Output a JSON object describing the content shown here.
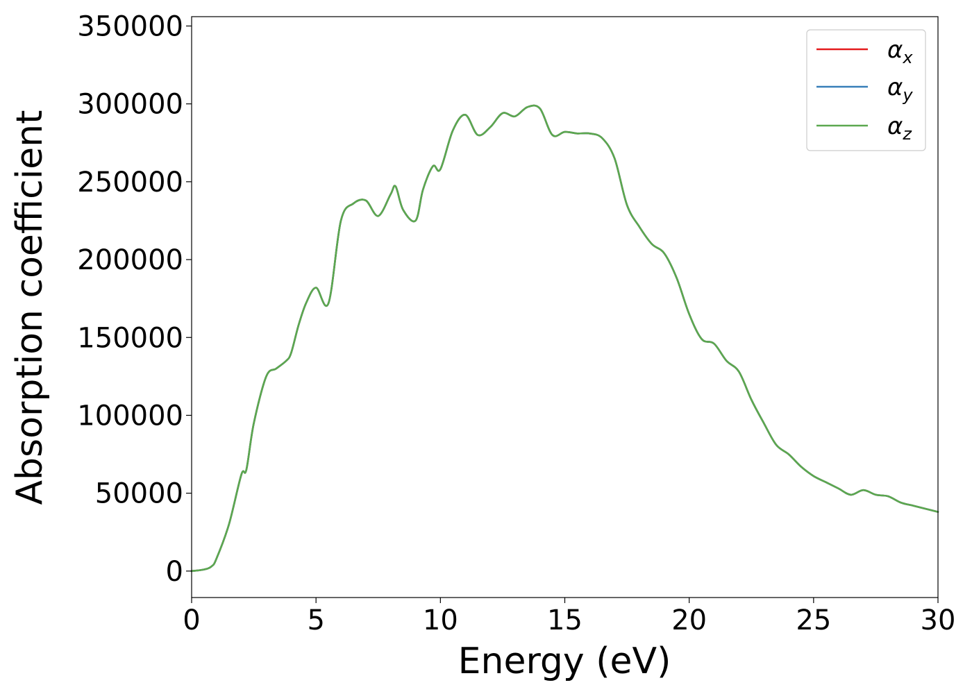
{
  "chart_data": {
    "type": "line",
    "xlabel": "Energy (eV)",
    "ylabel": "Absorption coefficient",
    "xlim": [
      0,
      30
    ],
    "ylim": [
      -17000,
      356000
    ],
    "xticks": [
      0,
      5,
      10,
      15,
      20,
      25,
      30
    ],
    "xtick_labels": [
      "0",
      "5",
      "10",
      "15",
      "20",
      "25",
      "30"
    ],
    "yticks": [
      0,
      50000,
      100000,
      150000,
      200000,
      250000,
      300000,
      350000
    ],
    "ytick_labels": [
      "0",
      "50000",
      "100000",
      "150000",
      "200000",
      "250000",
      "300000",
      "350000"
    ],
    "grid": false,
    "legend_position": "top-right",
    "x": [
      0,
      0.5,
      0.8,
      1.0,
      1.5,
      2.0,
      2.2,
      2.5,
      3.0,
      3.4,
      3.8,
      4.0,
      4.3,
      4.6,
      5.0,
      5.5,
      6.0,
      6.5,
      7.0,
      7.5,
      8.0,
      8.2,
      8.5,
      9.0,
      9.3,
      9.7,
      10.0,
      10.5,
      11.0,
      11.5,
      12.0,
      12.5,
      13.0,
      13.5,
      14.0,
      14.5,
      15.0,
      15.5,
      16.0,
      16.5,
      17.0,
      17.5,
      18.0,
      18.5,
      19.0,
      19.5,
      20.0,
      20.5,
      21.0,
      21.5,
      22.0,
      22.5,
      23.0,
      23.5,
      24.0,
      24.5,
      25.0,
      25.5,
      26.0,
      26.5,
      27.0,
      27.5,
      28.0,
      28.5,
      29.0,
      29.5,
      30.0
    ],
    "series": [
      {
        "name": "α_x",
        "color": "#e41a1c",
        "y": [
          0,
          1000,
          3000,
          8000,
          30000,
          62000,
          65000,
          95000,
          125000,
          130000,
          135000,
          140000,
          158000,
          172000,
          182000,
          172000,
          225000,
          236000,
          238000,
          228000,
          242000,
          247000,
          232000,
          225000,
          245000,
          260000,
          258000,
          283000,
          293000,
          280000,
          285000,
          294000,
          292000,
          298000,
          297000,
          280000,
          282000,
          281000,
          281000,
          278000,
          265000,
          235000,
          221000,
          210000,
          204000,
          188000,
          165000,
          149000,
          146000,
          135000,
          128000,
          110000,
          95000,
          81000,
          75000,
          67000,
          61000,
          57000,
          53000,
          49000,
          52000,
          49000,
          48000,
          44000,
          42000,
          40000,
          38000
        ]
      },
      {
        "name": "α_y",
        "color": "#377eb8",
        "y": [
          0,
          1000,
          3000,
          8000,
          30000,
          62000,
          65000,
          95000,
          125000,
          130000,
          135000,
          140000,
          158000,
          172000,
          182000,
          172000,
          225000,
          236000,
          238000,
          228000,
          242000,
          247000,
          232000,
          225000,
          245000,
          260000,
          258000,
          283000,
          293000,
          280000,
          285000,
          294000,
          292000,
          298000,
          297000,
          280000,
          282000,
          281000,
          281000,
          278000,
          265000,
          235000,
          221000,
          210000,
          204000,
          188000,
          165000,
          149000,
          146000,
          135000,
          128000,
          110000,
          95000,
          81000,
          75000,
          67000,
          61000,
          57000,
          53000,
          49000,
          52000,
          49000,
          48000,
          44000,
          42000,
          40000,
          38000
        ]
      },
      {
        "name": "α_z",
        "color": "#5ba84f",
        "y": [
          0,
          1000,
          3000,
          8000,
          30000,
          62000,
          65000,
          95000,
          125000,
          130000,
          135000,
          140000,
          158000,
          172000,
          182000,
          172000,
          225000,
          236000,
          238000,
          228000,
          242000,
          247000,
          232000,
          225000,
          245000,
          260000,
          258000,
          283000,
          293000,
          280000,
          285000,
          294000,
          292000,
          298000,
          297000,
          280000,
          282000,
          281000,
          281000,
          278000,
          265000,
          235000,
          221000,
          210000,
          204000,
          188000,
          165000,
          149000,
          146000,
          135000,
          128000,
          110000,
          95000,
          81000,
          75000,
          67000,
          61000,
          57000,
          53000,
          49000,
          52000,
          49000,
          48000,
          44000,
          42000,
          40000,
          38000
        ]
      }
    ],
    "legend": [
      {
        "symbol": "α",
        "subscript": "x"
      },
      {
        "symbol": "α",
        "subscript": "y"
      },
      {
        "symbol": "α",
        "subscript": "z"
      }
    ]
  }
}
